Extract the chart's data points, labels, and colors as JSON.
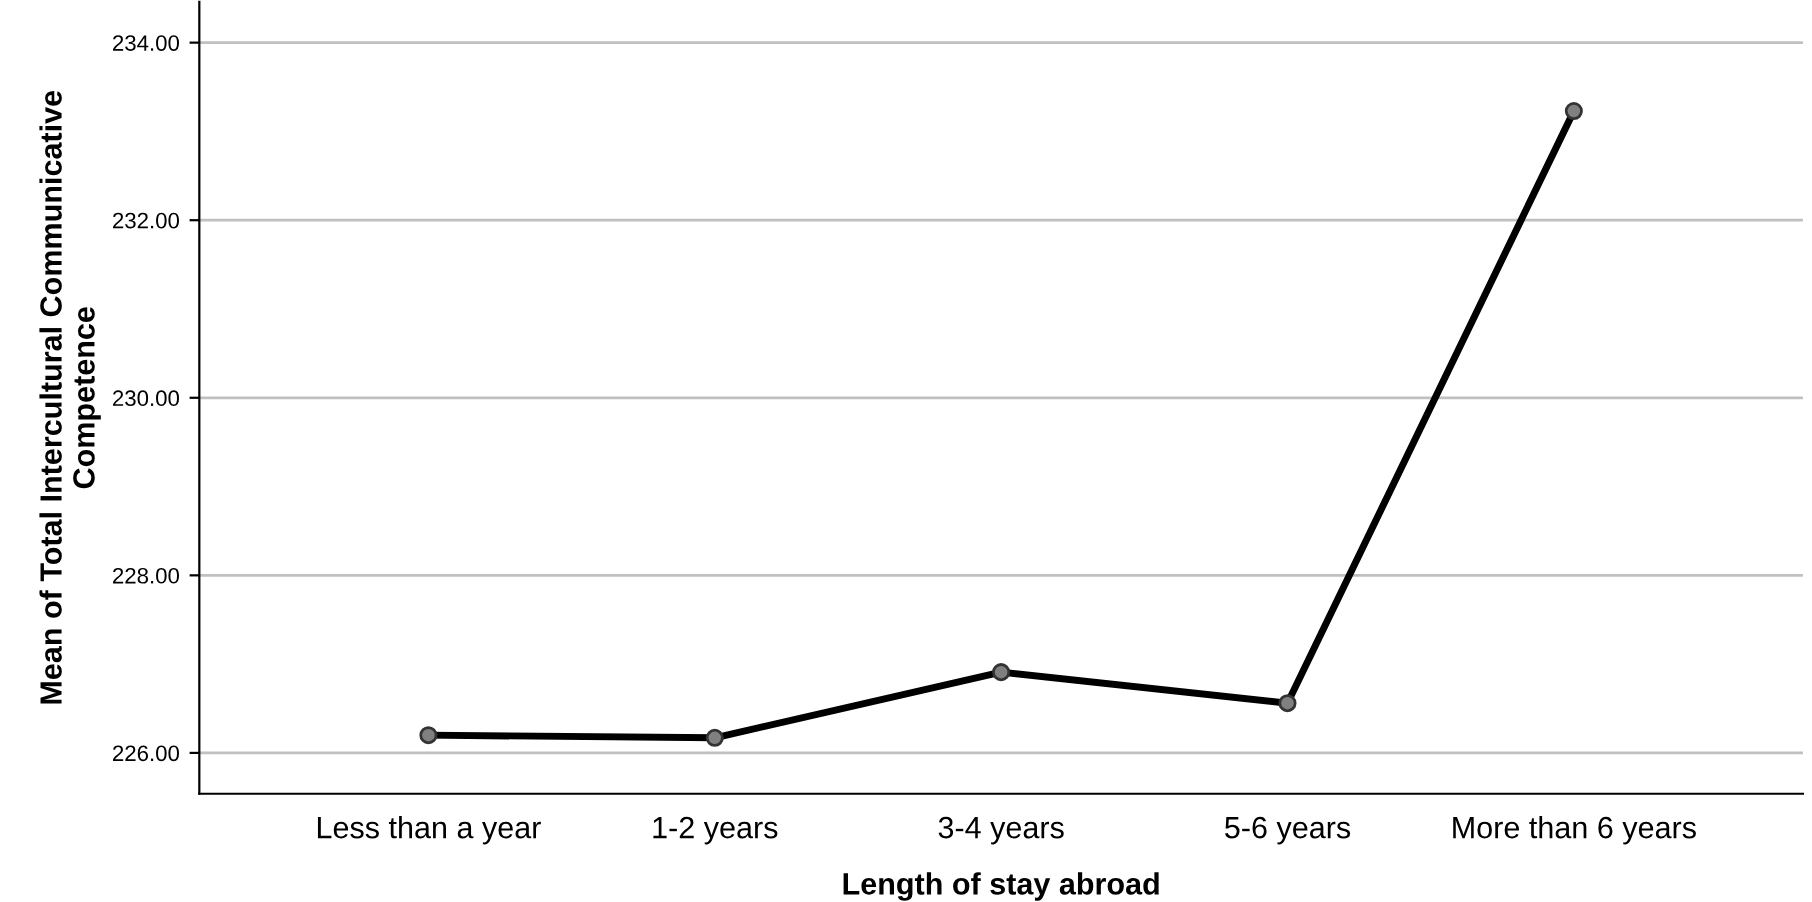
{
  "chart_data": {
    "type": "line",
    "xlabel": "Length of stay abroad",
    "ylabel": "Mean of Total Intercultural Communicative\nCompetence",
    "categories": [
      "Less than a year",
      "1-2 years",
      "3-4 years",
      "5-6 years",
      "More than 6 years"
    ],
    "series": [
      {
        "color": "#000000",
        "values": [
          226.2,
          226.17,
          226.91,
          226.56,
          233.23
        ]
      }
    ],
    "ylim": [
      225.54,
      234.46
    ],
    "yticks": [
      {
        "value": 226,
        "label": "226.00"
      },
      {
        "value": 228,
        "label": "228.00"
      },
      {
        "value": 230,
        "label": "230.00"
      },
      {
        "value": 232,
        "label": "232.00"
      },
      {
        "value": 234,
        "label": "234.00"
      }
    ],
    "grid": "y",
    "marker": "circle",
    "line_style": "solid"
  }
}
